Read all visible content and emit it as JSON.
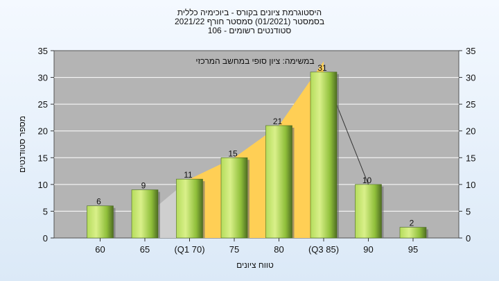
{
  "chart_data": {
    "type": "bar",
    "title_lines": [
      "היסטוגרמת ציונים בקורס - ביוכימיה כללית",
      "בסמסטר  (01/2021)  סמסטר חורף  2021/22",
      "סטודנטים רשומים - 106"
    ],
    "annotation": "במשימה: ציון סופי במחשב המרכזי",
    "xlabel": "טווח ציונים",
    "ylabel": "מספר סטודנטים",
    "categories": [
      "60",
      "65",
      "(Q1 70)",
      "75",
      "80",
      "(Q3 85)",
      "90",
      "95"
    ],
    "values": [
      6,
      9,
      11,
      15,
      21,
      31,
      10,
      2
    ],
    "ylim": [
      0,
      35
    ],
    "yticks": [
      0,
      5,
      10,
      15,
      20,
      25,
      30,
      35
    ],
    "grid": true,
    "colors": {
      "plot_bg": "#b4b4b4",
      "bar_light": "#d9f08a",
      "bar_mid": "#8fbf3a",
      "bar_dark": "#4f6e22",
      "area_iqr": "#ffcf55",
      "area_outer": "#cfcfcf"
    }
  }
}
